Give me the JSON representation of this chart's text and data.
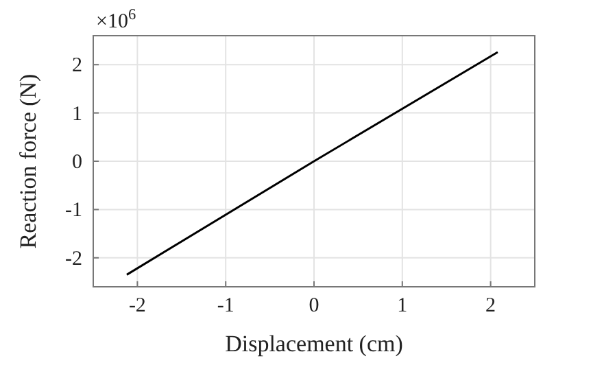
{
  "chart_data": {
    "type": "line",
    "xlabel": "Displacement (cm)",
    "ylabel": "Reaction force (N)",
    "annotations": [
      "×10$^{6}$"
    ],
    "series": [
      {
        "color": "#000000",
        "x": [
          -2.12,
          0,
          2.08
        ],
        "values": [
          -2.35,
          0,
          2.26
        ]
      }
    ],
    "xlim": [
      -2.5,
      2.5
    ],
    "xticks": [
      -2,
      -1,
      0,
      1,
      2
    ],
    "ylim": [
      -2.6,
      2.6
    ],
    "yticks": [
      -2,
      -1,
      0,
      1,
      2
    ],
    "grid": true,
    "marker": "none",
    "line_style": "solid"
  }
}
